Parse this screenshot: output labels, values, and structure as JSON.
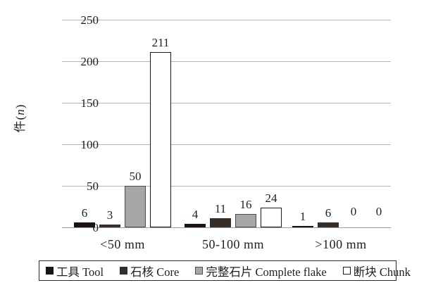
{
  "chart_data": {
    "type": "bar",
    "categories": [
      "<50 mm",
      "50-100 mm",
      ">100 mm"
    ],
    "series": [
      {
        "name": "工具 Tool",
        "values": [
          6,
          4,
          1
        ],
        "color": "#1b1410",
        "border_color": "#1b1410"
      },
      {
        "name": "石核 Core",
        "values": [
          3,
          11,
          6
        ],
        "color": "#362e27",
        "border_color": "#362e27"
      },
      {
        "name": "完整石片 Complete flake",
        "values": [
          50,
          16,
          0
        ],
        "color": "#a7a7a7",
        "border_color": "#4d4d4d"
      },
      {
        "name": "断块 Chunk",
        "values": [
          211,
          24,
          0
        ],
        "color": "#ffffff",
        "border_color": "#1a1a1a"
      }
    ],
    "bar_value_labels": [
      [
        "6",
        "3",
        "50",
        "211"
      ],
      [
        "4",
        "11",
        "16",
        "24"
      ],
      [
        "1",
        "6",
        "0",
        "0"
      ]
    ],
    "ylabel": {
      "prefix": "件(",
      "variable": "n",
      "suffix": ")"
    },
    "yticks": [
      "0",
      "50",
      "100",
      "150",
      "200",
      "250"
    ],
    "ylim": [
      0,
      250
    ],
    "grid": true,
    "legend_position": "bottom",
    "colors": {
      "gridline": "#b5b5b5",
      "axis": "#9e9e9e",
      "text": "#1f1f1f",
      "legend_border": "#2b2b2b"
    }
  }
}
